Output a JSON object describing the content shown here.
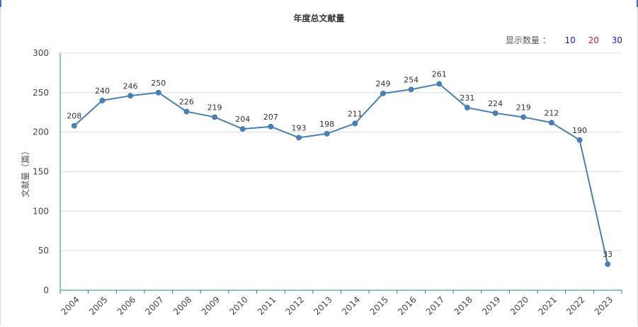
{
  "chart_data": {
    "type": "line",
    "title": "年度总文献量",
    "ylabel": "文献量（篇）",
    "xlabel": "",
    "ylim": [
      0,
      300
    ],
    "yticks": [
      0,
      50,
      100,
      150,
      200,
      250,
      300
    ],
    "categories": [
      "2004",
      "2005",
      "2006",
      "2007",
      "2008",
      "2009",
      "2010",
      "2011",
      "2012",
      "2013",
      "2014",
      "2015",
      "2016",
      "2017",
      "2018",
      "2019",
      "2020",
      "2021",
      "2022",
      "2023"
    ],
    "series": [
      {
        "values": [
          208,
          240,
          246,
          250,
          226,
          219,
          204,
          207,
          193,
          198,
          211,
          249,
          254,
          261,
          231,
          224,
          219,
          212,
          190,
          33
        ]
      }
    ],
    "grid": true,
    "line_color": "#4a7fb3",
    "axis_color": "#1f8f8a"
  },
  "display_count": {
    "label": "显示数量 ：",
    "options": [
      {
        "value": "10",
        "color": "#1a1acc"
      },
      {
        "value": "20",
        "color": "#dd2222"
      },
      {
        "value": "30",
        "color": "#1a1acc"
      }
    ]
  }
}
